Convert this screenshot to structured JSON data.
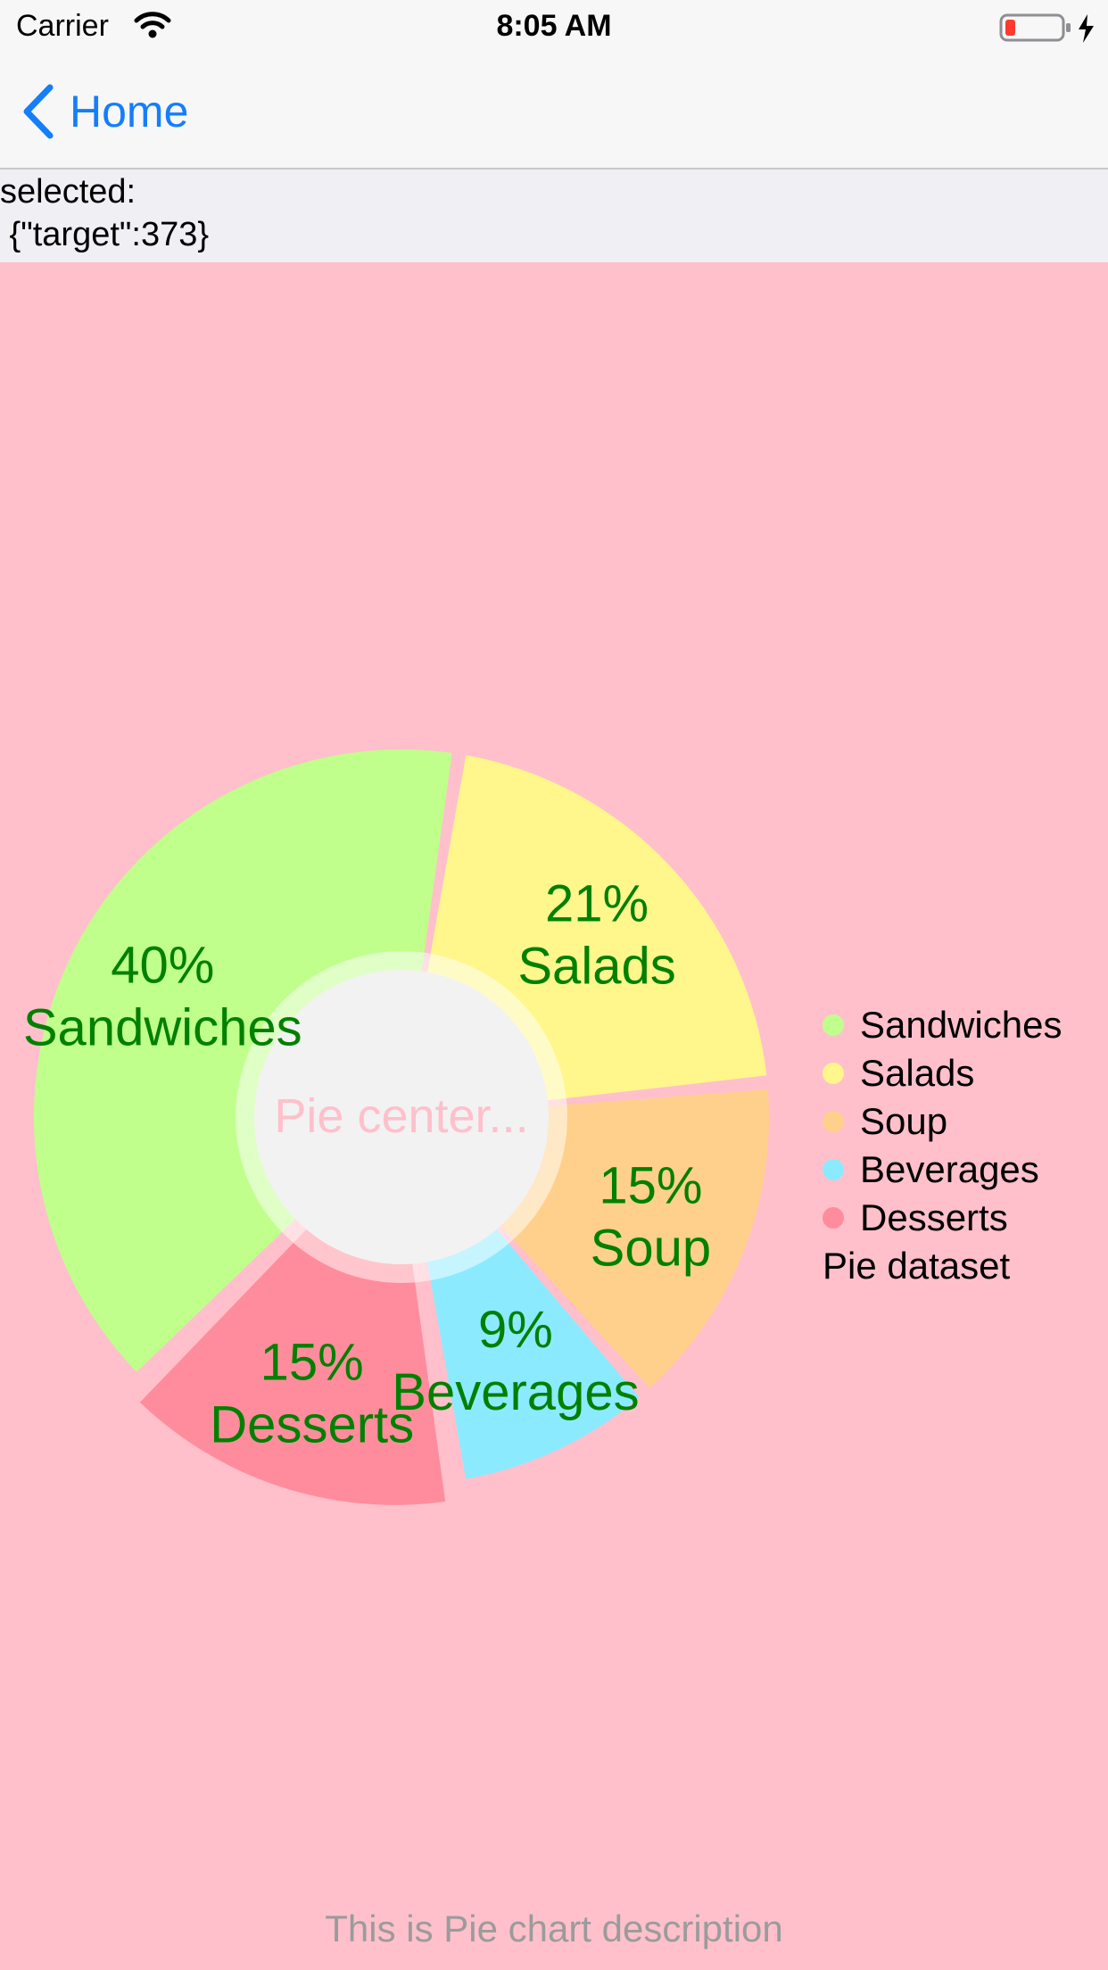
{
  "status_bar": {
    "carrier": "Carrier",
    "time": "8:05 AM"
  },
  "nav": {
    "back_label": "Home"
  },
  "selection": {
    "label": "selected:",
    "value": " {\"target\":373}"
  },
  "chart_data": {
    "type": "pie",
    "style": "donut",
    "center_text": "Pie center...",
    "description": "This is Pie chart description",
    "dataset_label": "Pie dataset",
    "categories": [
      "Sandwiches",
      "Salads",
      "Soup",
      "Beverages",
      "Desserts"
    ],
    "values": [
      40,
      21,
      15,
      9,
      15
    ],
    "value_labels": [
      "40%",
      "21%",
      "15%",
      "9%",
      "15%"
    ],
    "colors": [
      "#c0ff8c",
      "#fff78c",
      "#ffd08c",
      "#8ceaff",
      "#ff8c9d"
    ],
    "selected_slice": "Desserts",
    "value_text_color": "#008000",
    "legend_position": "right"
  },
  "colors": {
    "chart_background": "#ffc0cb",
    "accent": "#147efb",
    "center_hole": "#f2f2f2",
    "center_text": "#ffc0cb"
  }
}
